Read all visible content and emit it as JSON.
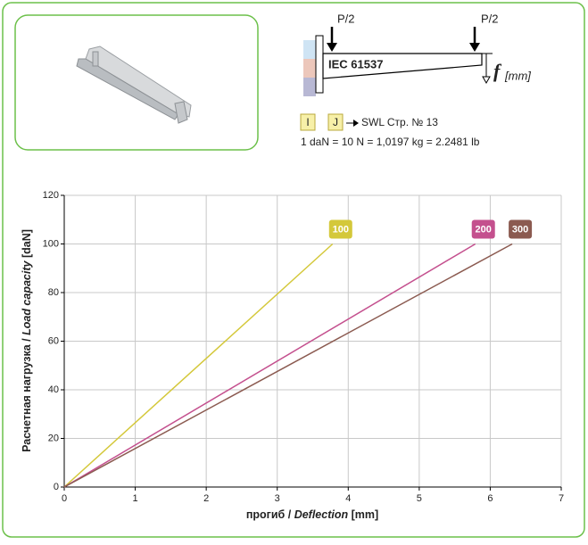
{
  "diagram": {
    "load_left": "P/2",
    "load_right": "P/2",
    "standard": "IEC 61537",
    "deflection_symbol": "f",
    "deflection_unit": "[mm]",
    "box_i": "I",
    "box_j": "J",
    "swl_ref": "SWL Стр. № 13",
    "conversion": "1 daN = 10 N = 1,0197 kg = 2.2481 lb"
  },
  "chart_data": {
    "type": "line",
    "x_label": [
      "прогиб / ",
      "Deflection",
      " [mm]"
    ],
    "y_label": [
      "Расчетная нагрузка / ",
      "Load capacity",
      " [daN]"
    ],
    "series": [
      {
        "name": "100",
        "color": "#d4c83a",
        "x": [
          0,
          3.78
        ],
        "values": [
          0,
          100
        ]
      },
      {
        "name": "200",
        "color": "#c4508e",
        "x": [
          0,
          5.79
        ],
        "values": [
          0,
          100
        ]
      },
      {
        "name": "300",
        "color": "#8b5a50",
        "x": [
          0,
          6.31
        ],
        "values": [
          0,
          100
        ]
      }
    ],
    "xlim": [
      0,
      7
    ],
    "xticks": [
      0,
      1,
      2,
      3,
      4,
      5,
      6,
      7
    ],
    "ylim": [
      0,
      120
    ],
    "yticks": [
      0,
      20,
      40,
      60,
      80,
      100,
      120
    ],
    "grid": true
  }
}
